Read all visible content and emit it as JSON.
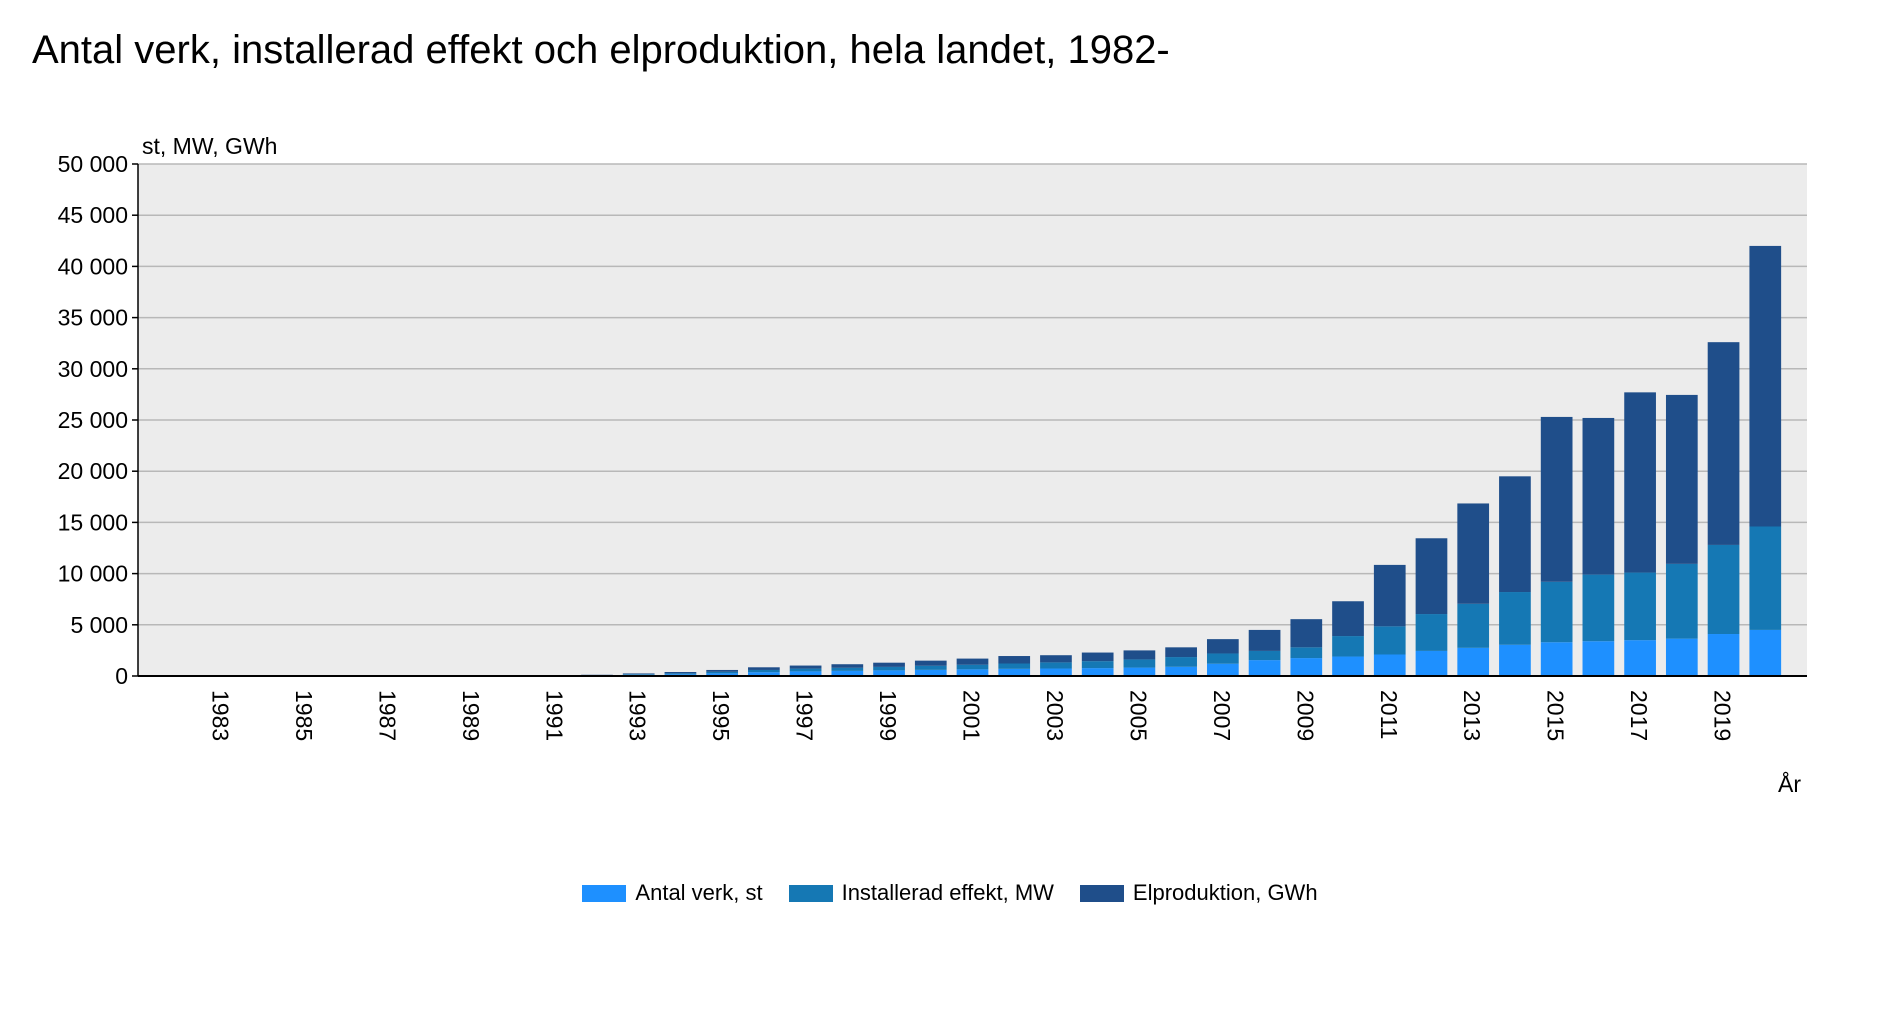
{
  "chart_data": {
    "type": "bar",
    "stacked": true,
    "title": "Antal verk, installerad effekt och elproduktion, hela landet, 1982-",
    "ylabel": "st, MW, GWh",
    "xlabel": "År",
    "ylim": [
      0,
      50000
    ],
    "yticks": [
      "0",
      "5 000",
      "10 000",
      "15 000",
      "20 000",
      "25 000",
      "30 000",
      "35 000",
      "40 000",
      "45 000",
      "50 000"
    ],
    "xtick_labels": [
      "1983",
      "1985",
      "1987",
      "1989",
      "1991",
      "1993",
      "1995",
      "1997",
      "1999",
      "2001",
      "2003",
      "2005",
      "2007",
      "2009",
      "2011",
      "2013",
      "2015",
      "2017",
      "2019"
    ],
    "categories": [
      "1982",
      "1983",
      "1984",
      "1985",
      "1986",
      "1987",
      "1988",
      "1989",
      "1990",
      "1991",
      "1992",
      "1993",
      "1994",
      "1995",
      "1996",
      "1997",
      "1998",
      "1999",
      "2000",
      "2001",
      "2002",
      "2003",
      "2004",
      "2005",
      "2006",
      "2007",
      "2008",
      "2009",
      "2010",
      "2011",
      "2012",
      "2013",
      "2014",
      "2015",
      "2016",
      "2017",
      "2018",
      "2019",
      "2020"
    ],
    "grid": true,
    "legend_position": "bottom",
    "series": [
      {
        "name": "Antal verk, st",
        "color": "#1e90ff",
        "values": [
          2,
          5,
          10,
          15,
          20,
          25,
          30,
          35,
          40,
          50,
          70,
          120,
          170,
          260,
          370,
          450,
          500,
          550,
          600,
          650,
          700,
          730,
          770,
          820,
          900,
          1200,
          1550,
          1750,
          1900,
          2100,
          2450,
          2750,
          3050,
          3300,
          3400,
          3500,
          3650,
          4100,
          4500
        ]
      },
      {
        "name": "Installerad effekt, MW",
        "color": "#1578b4",
        "values": [
          0,
          1,
          2,
          3,
          4,
          5,
          6,
          8,
          10,
          15,
          25,
          60,
          100,
          150,
          220,
          270,
          300,
          340,
          400,
          450,
          520,
          600,
          680,
          800,
          950,
          1000,
          900,
          1050,
          2000,
          2750,
          3600,
          4300,
          5150,
          5900,
          6500,
          6600,
          7300,
          8700,
          10100
        ]
      },
      {
        "name": "Elproduktion, GWh",
        "color": "#1f4e8a",
        "values": [
          0,
          1,
          2,
          3,
          4,
          5,
          6,
          8,
          10,
          15,
          25,
          70,
          120,
          180,
          260,
          300,
          350,
          410,
          500,
          600,
          730,
          700,
          840,
          880,
          950,
          1400,
          2050,
          2750,
          3400,
          6000,
          7400,
          9800,
          11300,
          16100,
          15300,
          17600,
          16500,
          19800,
          27400
        ]
      }
    ]
  },
  "legend": [
    {
      "label": "Antal verk, st",
      "color": "#1e90ff"
    },
    {
      "label": "Installerad effekt, MW",
      "color": "#1578b4"
    },
    {
      "label": "Elproduktion, GWh",
      "color": "#1f4e8a"
    }
  ],
  "colors": {
    "plot_background": "#ececec",
    "gridline": "#b8b8b8",
    "axis": "#000000"
  }
}
